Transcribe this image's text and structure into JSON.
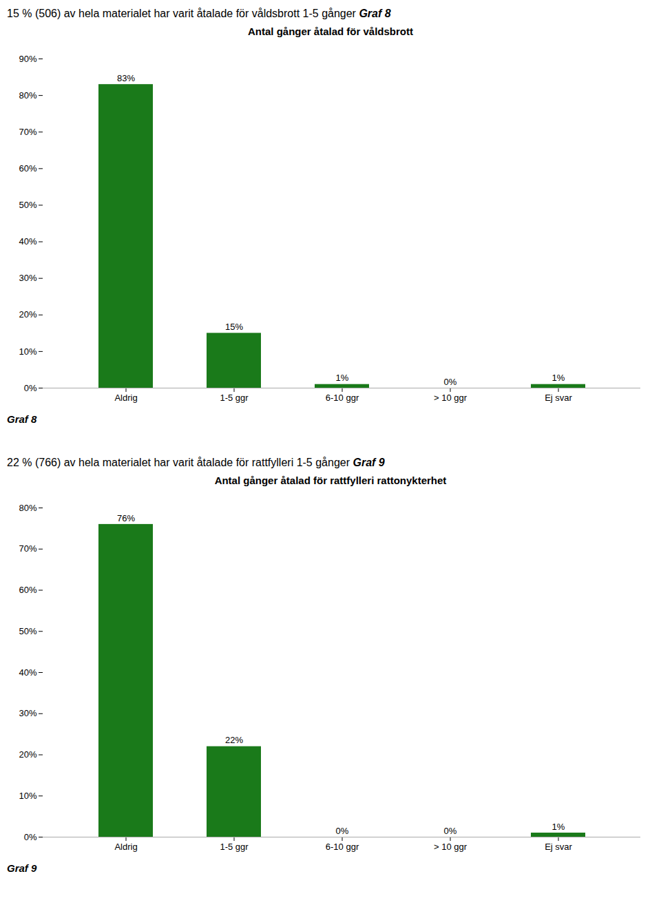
{
  "chart_data": [
    {
      "type": "bar",
      "title": "Antal gånger åtalad för våldsbrott",
      "subtitle": "15 % (506) av hela materialet har varit åtalade för våldsbrott 1-5 gånger ",
      "annotations": [
        "Graf 8",
        "Graf 8"
      ],
      "categories": [
        "Aldrig",
        "1-5 ggr",
        "6-10 ggr",
        "> 10 ggr",
        "Ej svar"
      ],
      "values": [
        83,
        15,
        1,
        0,
        1
      ],
      "value_labels": [
        "83%",
        "15%",
        "1%",
        "0%",
        "1%"
      ],
      "color": "#1a7a1a",
      "ylim": [
        0,
        90
      ],
      "yticks": [
        {
          "value": 0,
          "label": "0%"
        },
        {
          "value": 10,
          "label": "10%"
        },
        {
          "value": 20,
          "label": "20%"
        },
        {
          "value": 30,
          "label": "30%"
        },
        {
          "value": 40,
          "label": "40%"
        },
        {
          "value": 50,
          "label": "50%"
        },
        {
          "value": 60,
          "label": "60%"
        },
        {
          "value": 70,
          "label": "70%"
        },
        {
          "value": 80,
          "label": "80%"
        },
        {
          "value": 90,
          "label": "90%"
        }
      ],
      "grid": false,
      "data_labels": true
    },
    {
      "type": "bar",
      "title": "Antal gånger åtalad för rattfylleri rattonykterhet",
      "subtitle": "22 % (766) av hela materialet har varit åtalade för rattfylleri 1-5 gånger ",
      "annotations": [
        "Graf 9",
        "Graf 9"
      ],
      "categories": [
        "Aldrig",
        "1-5 ggr",
        "6-10 ggr",
        "> 10 ggr",
        "Ej svar"
      ],
      "values": [
        76,
        22,
        0,
        0,
        1
      ],
      "value_labels": [
        "76%",
        "22%",
        "0%",
        "0%",
        "1%"
      ],
      "color": "#1a7a1a",
      "ylim": [
        0,
        80
      ],
      "yticks": [
        {
          "value": 0,
          "label": "0%"
        },
        {
          "value": 10,
          "label": "10%"
        },
        {
          "value": 20,
          "label": "20%"
        },
        {
          "value": 30,
          "label": "30%"
        },
        {
          "value": 40,
          "label": "40%"
        },
        {
          "value": 50,
          "label": "50%"
        },
        {
          "value": 60,
          "label": "60%"
        },
        {
          "value": 70,
          "label": "70%"
        },
        {
          "value": 80,
          "label": "80%"
        }
      ],
      "grid": false,
      "data_labels": true
    }
  ]
}
